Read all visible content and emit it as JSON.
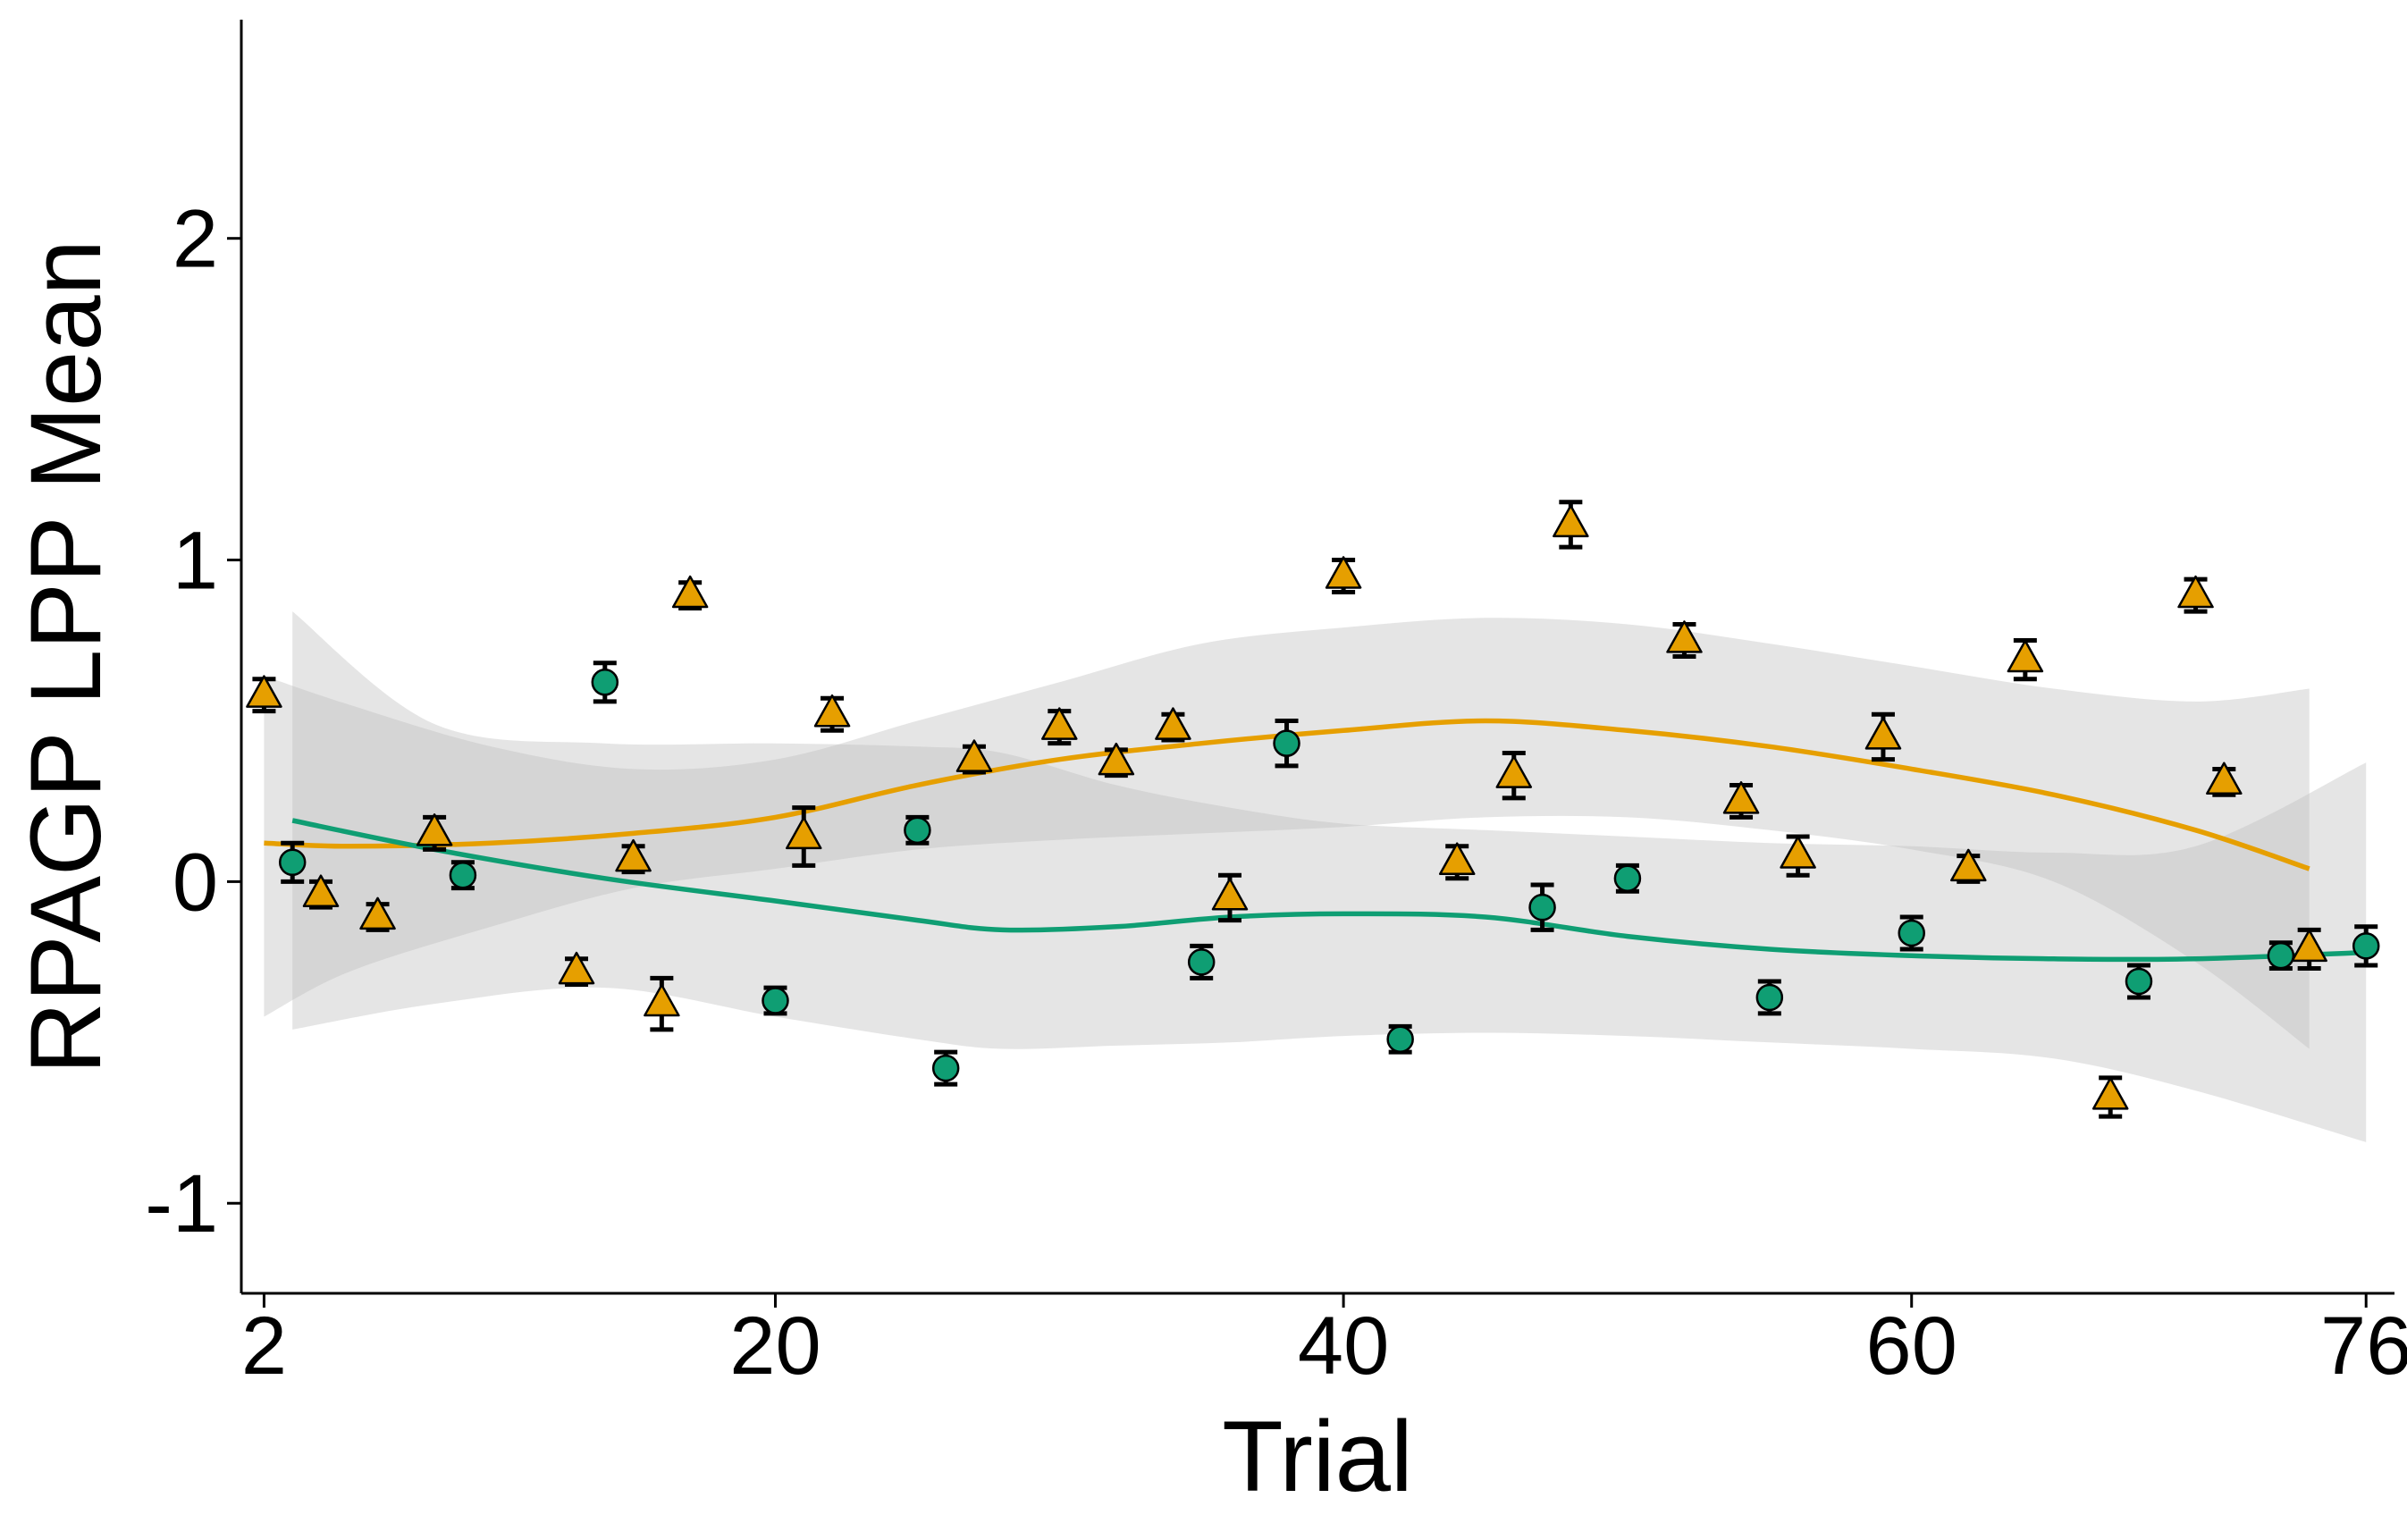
{
  "chart_data": {
    "type": "scatter",
    "title": "",
    "xlabel": "Trial",
    "ylabel": "RPAGP LPP Mean",
    "xlim": [
      1.2,
      77.0
    ],
    "ylim": [
      -1.28,
      2.68
    ],
    "x_ticks": [
      2,
      20,
      40,
      60,
      76
    ],
    "x_tick_labels": [
      "2",
      "20",
      "40",
      "60",
      "76"
    ],
    "y_ticks": [
      -1,
      0,
      1,
      2
    ],
    "y_tick_labels": [
      "-1",
      "0",
      "1",
      "2"
    ],
    "grid": false,
    "legend": "none",
    "colors": {
      "orange": "#E69F00",
      "green": "#0F9E73",
      "band": "#BEBEBE",
      "axis": "#000000"
    },
    "series": [
      {
        "marker": "triangle",
        "color": "#E69F00",
        "points": [
          {
            "x": 2,
            "y": 0.58,
            "err": 0.05
          },
          {
            "x": 4,
            "y": -0.04,
            "err": 0.04
          },
          {
            "x": 6,
            "y": -0.11,
            "err": 0.04
          },
          {
            "x": 8,
            "y": 0.15,
            "err": 0.05
          },
          {
            "x": 13,
            "y": -0.28,
            "err": 0.04
          },
          {
            "x": 15,
            "y": 0.07,
            "err": 0.04
          },
          {
            "x": 16,
            "y": -0.38,
            "err": 0.08
          },
          {
            "x": 17,
            "y": 0.89,
            "err": 0.04
          },
          {
            "x": 21,
            "y": 0.14,
            "err": 0.09
          },
          {
            "x": 22,
            "y": 0.52,
            "err": 0.05
          },
          {
            "x": 27,
            "y": 0.38,
            "err": 0.04
          },
          {
            "x": 30,
            "y": 0.48,
            "err": 0.05
          },
          {
            "x": 32,
            "y": 0.37,
            "err": 0.04
          },
          {
            "x": 34,
            "y": 0.48,
            "err": 0.04
          },
          {
            "x": 36,
            "y": -0.05,
            "err": 0.07
          },
          {
            "x": 40,
            "y": 0.95,
            "err": 0.05
          },
          {
            "x": 44,
            "y": 0.06,
            "err": 0.05
          },
          {
            "x": 46,
            "y": 0.33,
            "err": 0.07
          },
          {
            "x": 48,
            "y": 1.11,
            "err": 0.07
          },
          {
            "x": 52,
            "y": 0.75,
            "err": 0.05
          },
          {
            "x": 54,
            "y": 0.25,
            "err": 0.05
          },
          {
            "x": 56,
            "y": 0.08,
            "err": 0.06
          },
          {
            "x": 59,
            "y": 0.45,
            "err": 0.07
          },
          {
            "x": 62,
            "y": 0.04,
            "err": 0.04
          },
          {
            "x": 64,
            "y": 0.69,
            "err": 0.06
          },
          {
            "x": 67,
            "y": -0.67,
            "err": 0.06
          },
          {
            "x": 70,
            "y": 0.89,
            "err": 0.05
          },
          {
            "x": 71,
            "y": 0.31,
            "err": 0.04
          },
          {
            "x": 74,
            "y": -0.21,
            "err": 0.06
          }
        ],
        "smooth": {
          "x": [
            2,
            5,
            10,
            15,
            20,
            25,
            30,
            35,
            40,
            45,
            50,
            55,
            60,
            65,
            70,
            74
          ],
          "y": [
            0.12,
            0.11,
            0.12,
            0.15,
            0.2,
            0.3,
            0.38,
            0.43,
            0.47,
            0.5,
            0.47,
            0.42,
            0.35,
            0.27,
            0.16,
            0.04
          ],
          "lower": [
            -0.42,
            -0.28,
            -0.14,
            -0.02,
            0.04,
            0.1,
            0.13,
            0.15,
            0.17,
            0.2,
            0.2,
            0.16,
            0.1,
            0.0,
            -0.25,
            -0.52
          ],
          "upper": [
            0.64,
            0.55,
            0.42,
            0.35,
            0.38,
            0.5,
            0.62,
            0.74,
            0.79,
            0.82,
            0.8,
            0.74,
            0.67,
            0.6,
            0.56,
            0.6
          ]
        }
      },
      {
        "marker": "circle",
        "color": "#0F9E73",
        "points": [
          {
            "x": 3,
            "y": 0.06,
            "err": 0.06
          },
          {
            "x": 9,
            "y": 0.02,
            "err": 0.04
          },
          {
            "x": 14,
            "y": 0.62,
            "err": 0.06
          },
          {
            "x": 20,
            "y": -0.37,
            "err": 0.04
          },
          {
            "x": 25,
            "y": 0.16,
            "err": 0.04
          },
          {
            "x": 26,
            "y": -0.58,
            "err": 0.05
          },
          {
            "x": 35,
            "y": -0.25,
            "err": 0.05
          },
          {
            "x": 38,
            "y": 0.43,
            "err": 0.07
          },
          {
            "x": 42,
            "y": -0.49,
            "err": 0.04
          },
          {
            "x": 47,
            "y": -0.08,
            "err": 0.07
          },
          {
            "x": 50,
            "y": 0.01,
            "err": 0.04
          },
          {
            "x": 55,
            "y": -0.36,
            "err": 0.05
          },
          {
            "x": 60,
            "y": -0.16,
            "err": 0.05
          },
          {
            "x": 68,
            "y": -0.31,
            "err": 0.05
          },
          {
            "x": 73,
            "y": -0.23,
            "err": 0.04
          },
          {
            "x": 76,
            "y": -0.2,
            "err": 0.06
          }
        ],
        "smooth": {
          "x": [
            3,
            8,
            14,
            20,
            25,
            28,
            32,
            36,
            40,
            45,
            50,
            55,
            60,
            65,
            70,
            76
          ],
          "y": [
            0.19,
            0.1,
            0.01,
            -0.06,
            -0.12,
            -0.15,
            -0.14,
            -0.11,
            -0.1,
            -0.11,
            -0.17,
            -0.21,
            -0.23,
            -0.24,
            -0.24,
            -0.22
          ],
          "lower": [
            -0.46,
            -0.38,
            -0.33,
            -0.42,
            -0.49,
            -0.52,
            -0.51,
            -0.5,
            -0.48,
            -0.47,
            -0.48,
            -0.5,
            -0.52,
            -0.55,
            -0.65,
            -0.81
          ],
          "upper": [
            0.84,
            0.49,
            0.43,
            0.43,
            0.42,
            0.4,
            0.3,
            0.23,
            0.18,
            0.16,
            0.14,
            0.12,
            0.11,
            0.09,
            0.11,
            0.37
          ]
        }
      }
    ]
  }
}
